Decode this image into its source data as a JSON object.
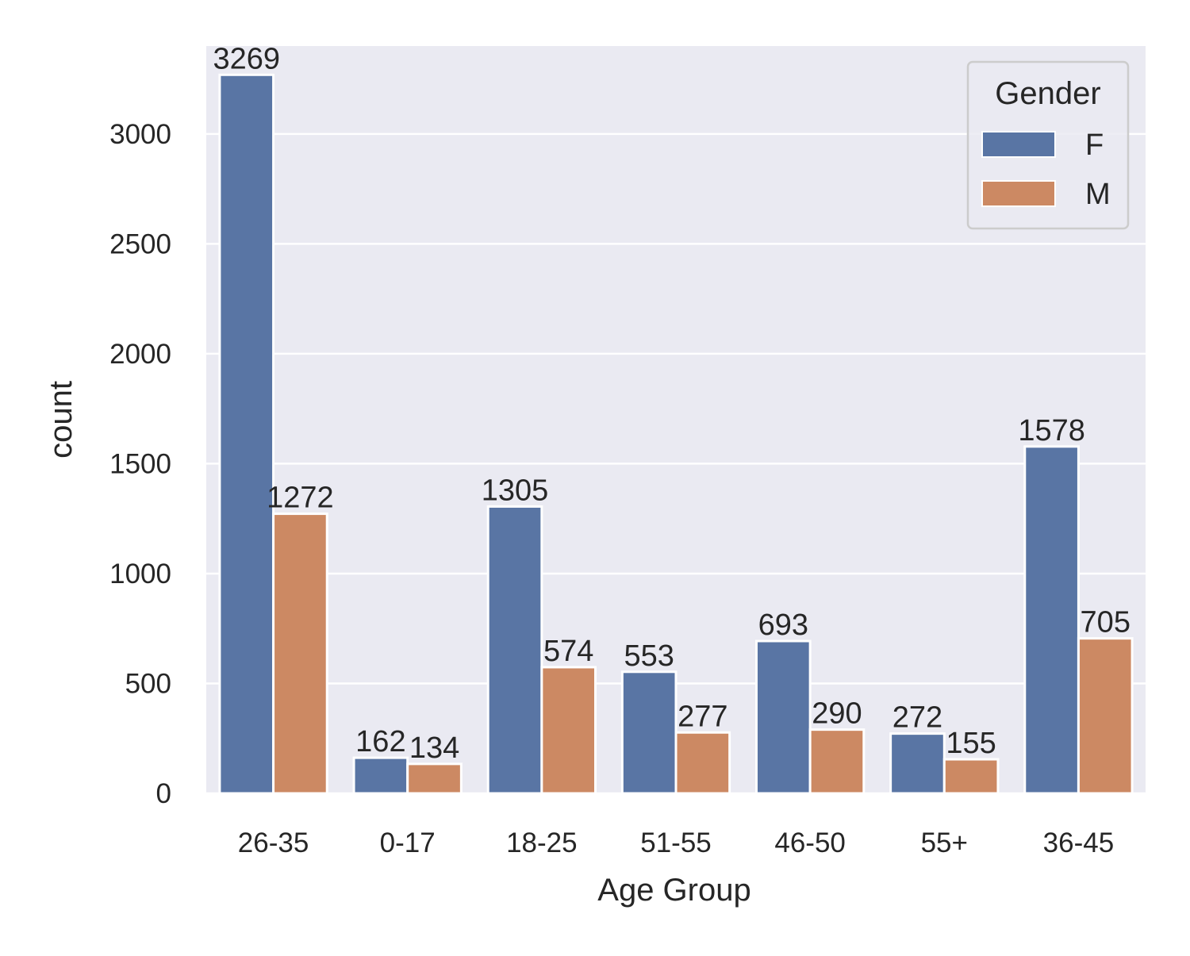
{
  "chart_data": {
    "type": "bar",
    "title": "",
    "xlabel": "Age Group",
    "ylabel": "count",
    "categories": [
      "26-35",
      "0-17",
      "18-25",
      "51-55",
      "46-50",
      "55+",
      "36-45"
    ],
    "series": [
      {
        "name": "F",
        "color": "#5975a4",
        "values": [
          3269,
          162,
          1305,
          553,
          693,
          272,
          1578
        ]
      },
      {
        "name": "M",
        "color": "#cc8963",
        "values": [
          1272,
          134,
          574,
          277,
          290,
          155,
          705
        ]
      }
    ],
    "yticks": [
      0,
      500,
      1000,
      1500,
      2000,
      2500,
      3000
    ],
    "ylim": [
      0,
      3400
    ],
    "grid": true,
    "legend": {
      "title": "Gender",
      "position": "top-right"
    },
    "background_color": "#eaeaf2",
    "data_labels": true
  }
}
